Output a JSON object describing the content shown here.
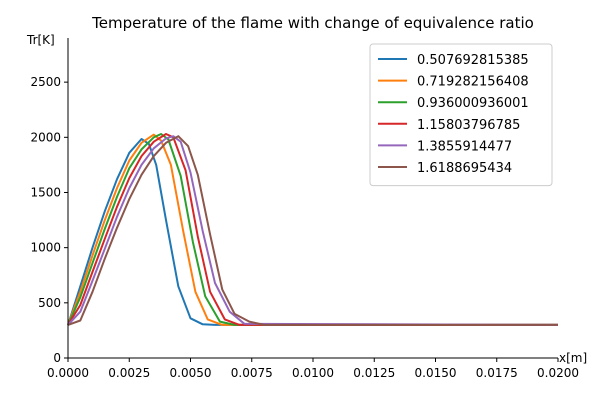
{
  "chart_data": {
    "type": "line",
    "title": "Temperature of the flame with change of equivalence ratio",
    "xlabel": "x[m]",
    "ylabel": "Tr[K]",
    "xlim": [
      0,
      0.02
    ],
    "ylim": [
      0,
      2900
    ],
    "xticks": [
      "0.0000",
      "0.0025",
      "0.0050",
      "0.0075",
      "0.0100",
      "0.0125",
      "0.0150",
      "0.0175",
      "0.0200"
    ],
    "yticks": [
      "0",
      "500",
      "1000",
      "1500",
      "2000",
      "2500"
    ],
    "grid": false,
    "legend_position": "top-right",
    "series": [
      {
        "name": "0.507692815385",
        "color": "#1f77b4",
        "x": [
          0,
          0.0005,
          0.001,
          0.0015,
          0.002,
          0.0025,
          0.003,
          0.0033,
          0.0036,
          0.004,
          0.0045,
          0.005,
          0.0055,
          0.006,
          0.02
        ],
        "y": [
          300,
          650,
          1000,
          1330,
          1620,
          1860,
          1985,
          1940,
          1750,
          1250,
          650,
          360,
          305,
          300,
          300
        ]
      },
      {
        "name": "0.719282156408",
        "color": "#ff7f0e",
        "x": [
          0,
          0.0005,
          0.001,
          0.0015,
          0.002,
          0.0025,
          0.003,
          0.0035,
          0.0038,
          0.0042,
          0.0047,
          0.0052,
          0.0057,
          0.0063,
          0.02
        ],
        "y": [
          300,
          600,
          930,
          1250,
          1540,
          1790,
          1950,
          2025,
          1970,
          1750,
          1150,
          600,
          350,
          300,
          300
        ]
      },
      {
        "name": "0.936000936001",
        "color": "#2ca02c",
        "x": [
          0,
          0.0005,
          0.001,
          0.0015,
          0.002,
          0.0025,
          0.003,
          0.0035,
          0.0038,
          0.0041,
          0.0046,
          0.0051,
          0.0056,
          0.0062,
          0.0068,
          0.02
        ],
        "y": [
          300,
          550,
          860,
          1170,
          1460,
          1720,
          1890,
          2000,
          2030,
          1980,
          1650,
          1050,
          560,
          330,
          300,
          300
        ]
      },
      {
        "name": "1.15803796785",
        "color": "#d62728",
        "x": [
          0,
          0.0005,
          0.001,
          0.0015,
          0.002,
          0.0025,
          0.003,
          0.0035,
          0.004,
          0.0043,
          0.0048,
          0.0053,
          0.0058,
          0.0064,
          0.007,
          0.02
        ],
        "y": [
          300,
          480,
          780,
          1080,
          1370,
          1630,
          1830,
          1960,
          2030,
          2000,
          1700,
          1100,
          600,
          350,
          300,
          300
        ]
      },
      {
        "name": "1.3855914477",
        "color": "#9467bd",
        "x": [
          0,
          0.0005,
          0.001,
          0.0015,
          0.002,
          0.0025,
          0.003,
          0.0035,
          0.004,
          0.0043,
          0.0046,
          0.005,
          0.0055,
          0.006,
          0.0066,
          0.0072,
          0.02
        ],
        "y": [
          300,
          420,
          700,
          990,
          1280,
          1540,
          1750,
          1900,
          1990,
          2010,
          1960,
          1680,
          1150,
          680,
          420,
          310,
          300
        ]
      },
      {
        "name": "1.6188695434",
        "color": "#8c564b",
        "x": [
          0,
          0.0005,
          0.001,
          0.0015,
          0.002,
          0.0025,
          0.003,
          0.0035,
          0.004,
          0.0045,
          0.0049,
          0.0053,
          0.0058,
          0.0063,
          0.0068,
          0.0074,
          0.008,
          0.02
        ],
        "y": [
          300,
          340,
          600,
          900,
          1180,
          1440,
          1660,
          1830,
          1950,
          2010,
          1920,
          1660,
          1120,
          620,
          400,
          330,
          300,
          300
        ]
      }
    ]
  }
}
